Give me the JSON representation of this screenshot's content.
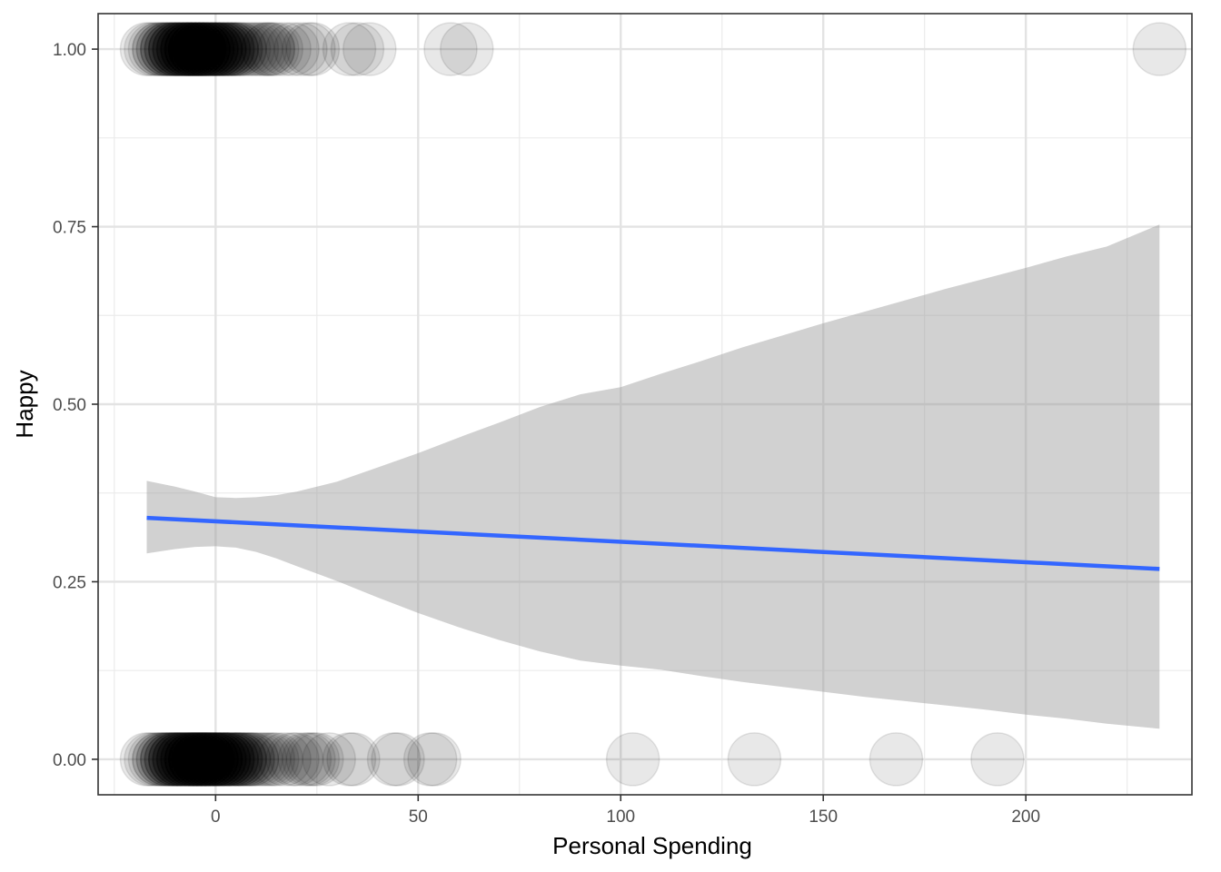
{
  "chart_data": {
    "type": "scatter",
    "title": "",
    "xlabel": "Personal Spending",
    "ylabel": "Happy",
    "xlim": [
      -29,
      241
    ],
    "ylim": [
      -0.05,
      1.05
    ],
    "x_ticks": [
      0,
      50,
      100,
      150,
      200
    ],
    "x_tick_labels": [
      "0",
      "50",
      "100",
      "150",
      "200"
    ],
    "y_ticks": [
      0,
      0.25,
      0.5,
      0.75,
      1
    ],
    "y_tick_labels": [
      "0.00",
      "0.25",
      "0.50",
      "0.75",
      "1.00"
    ],
    "x_minor_ticks": [
      -25,
      25,
      75,
      125,
      175,
      225
    ],
    "y_minor_ticks": [
      0.125,
      0.375,
      0.625,
      0.875
    ],
    "grid": true,
    "legend": "none",
    "point_color": "#000000",
    "point_alpha": 0.09,
    "points_happy_1": [
      -17,
      -16,
      -15,
      -14,
      -14,
      -13,
      -13,
      -12,
      -12,
      -12,
      -11,
      -11,
      -11,
      -10,
      -10,
      -10,
      -10,
      -9,
      -9,
      -9,
      -9,
      -8,
      -8,
      -8,
      -8,
      -7,
      -7,
      -7,
      -7,
      -7,
      -6,
      -6,
      -6,
      -6,
      -6,
      -5,
      -5,
      -5,
      -5,
      -5,
      -4,
      -4,
      -4,
      -4,
      -4,
      -3,
      -3,
      -3,
      -3,
      -3,
      -2,
      -2,
      -2,
      -2,
      -1,
      -1,
      -1,
      -1,
      0,
      0,
      0,
      0,
      1,
      1,
      1,
      1,
      2,
      2,
      2,
      3,
      3,
      3,
      4,
      4,
      4,
      5,
      5,
      6,
      6,
      7,
      8,
      9,
      10,
      11,
      12,
      13,
      13,
      14,
      15,
      17,
      19,
      21,
      23,
      24,
      33,
      35,
      38,
      58,
      62,
      233
    ],
    "points_happy_0": [
      -17,
      -16,
      -15,
      -14,
      -14,
      -13,
      -13,
      -12,
      -12,
      -12,
      -11,
      -11,
      -11,
      -10,
      -10,
      -10,
      -10,
      -9,
      -9,
      -9,
      -9,
      -8,
      -8,
      -8,
      -8,
      -7,
      -7,
      -7,
      -7,
      -6,
      -6,
      -6,
      -6,
      -6,
      -5,
      -5,
      -5,
      -5,
      -5,
      -4,
      -4,
      -4,
      -4,
      -4,
      -3,
      -3,
      -3,
      -3,
      -3,
      -2,
      -2,
      -2,
      -2,
      -2,
      -1,
      -1,
      -1,
      -1,
      0,
      0,
      0,
      0,
      0,
      1,
      1,
      1,
      1,
      2,
      2,
      2,
      2,
      3,
      3,
      3,
      3,
      4,
      4,
      4,
      5,
      5,
      5,
      6,
      6,
      6,
      7,
      7,
      8,
      8,
      9,
      9,
      10,
      11,
      12,
      13,
      14,
      15,
      17,
      19,
      20,
      22,
      23,
      24,
      25,
      28,
      33,
      34,
      44,
      45,
      53,
      54,
      103,
      133,
      168,
      193
    ],
    "fit_line": {
      "color": "#3366FF",
      "x": [
        -17,
        233
      ],
      "y": [
        0.34,
        0.268
      ]
    },
    "confidence_band": {
      "color": "#999999",
      "x": [
        -17,
        -10,
        -5,
        0,
        5,
        10,
        15,
        20,
        30,
        40,
        50,
        60,
        70,
        80,
        90,
        100,
        110,
        120,
        130,
        140,
        150,
        160,
        170,
        180,
        190,
        200,
        210,
        220,
        233
      ],
      "lower": [
        0.29,
        0.296,
        0.299,
        0.3,
        0.298,
        0.292,
        0.283,
        0.272,
        0.251,
        0.228,
        0.206,
        0.186,
        0.168,
        0.152,
        0.139,
        0.132,
        0.126,
        0.117,
        0.109,
        0.102,
        0.095,
        0.088,
        0.082,
        0.076,
        0.07,
        0.063,
        0.057,
        0.05,
        0.043
      ],
      "upper": [
        0.392,
        0.384,
        0.377,
        0.369,
        0.368,
        0.369,
        0.372,
        0.377,
        0.391,
        0.411,
        0.431,
        0.453,
        0.474,
        0.496,
        0.514,
        0.524,
        0.543,
        0.561,
        0.58,
        0.597,
        0.614,
        0.63,
        0.646,
        0.662,
        0.677,
        0.692,
        0.708,
        0.722,
        0.753
      ]
    }
  }
}
